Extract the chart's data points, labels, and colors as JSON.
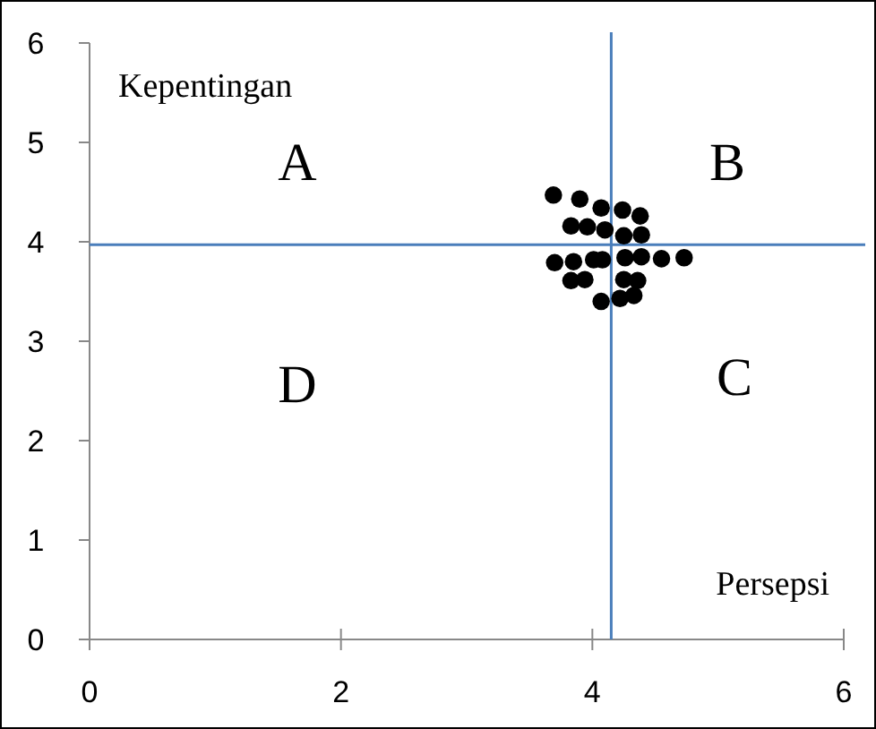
{
  "chart_data": {
    "type": "scatter",
    "xlabel": "Persepsi",
    "ylabel": "Kepentingan",
    "xlim": [
      0,
      6
    ],
    "ylim": [
      0,
      6
    ],
    "xticks": [
      0,
      2,
      4,
      6
    ],
    "yticks": [
      0,
      1,
      2,
      3,
      4,
      5,
      6
    ],
    "marker": "circle",
    "x": [
      3.69,
      3.9,
      4.07,
      4.24,
      4.38,
      3.83,
      3.96,
      4.1,
      4.39,
      4.25,
      3.7,
      3.85,
      4.01,
      4.08,
      4.26,
      4.39,
      4.55,
      4.73,
      3.83,
      3.94,
      4.25,
      4.36,
      4.07,
      4.22,
      4.33
    ],
    "series": [
      {
        "color": "#000000",
        "values": [
          4.47,
          4.43,
          4.34,
          4.32,
          4.26,
          4.16,
          4.15,
          4.12,
          4.07,
          4.06,
          3.79,
          3.8,
          3.82,
          3.82,
          3.84,
          3.85,
          3.83,
          3.84,
          3.61,
          3.62,
          3.62,
          3.61,
          3.4,
          3.43,
          3.46
        ]
      }
    ],
    "ref_lines": [
      {
        "axis": "x",
        "value": 4.15,
        "color": "#4a7ebb"
      },
      {
        "axis": "y",
        "value": 3.97,
        "color": "#4a7ebb"
      }
    ],
    "annotations": [
      "A",
      "B",
      "C",
      "D"
    ]
  }
}
